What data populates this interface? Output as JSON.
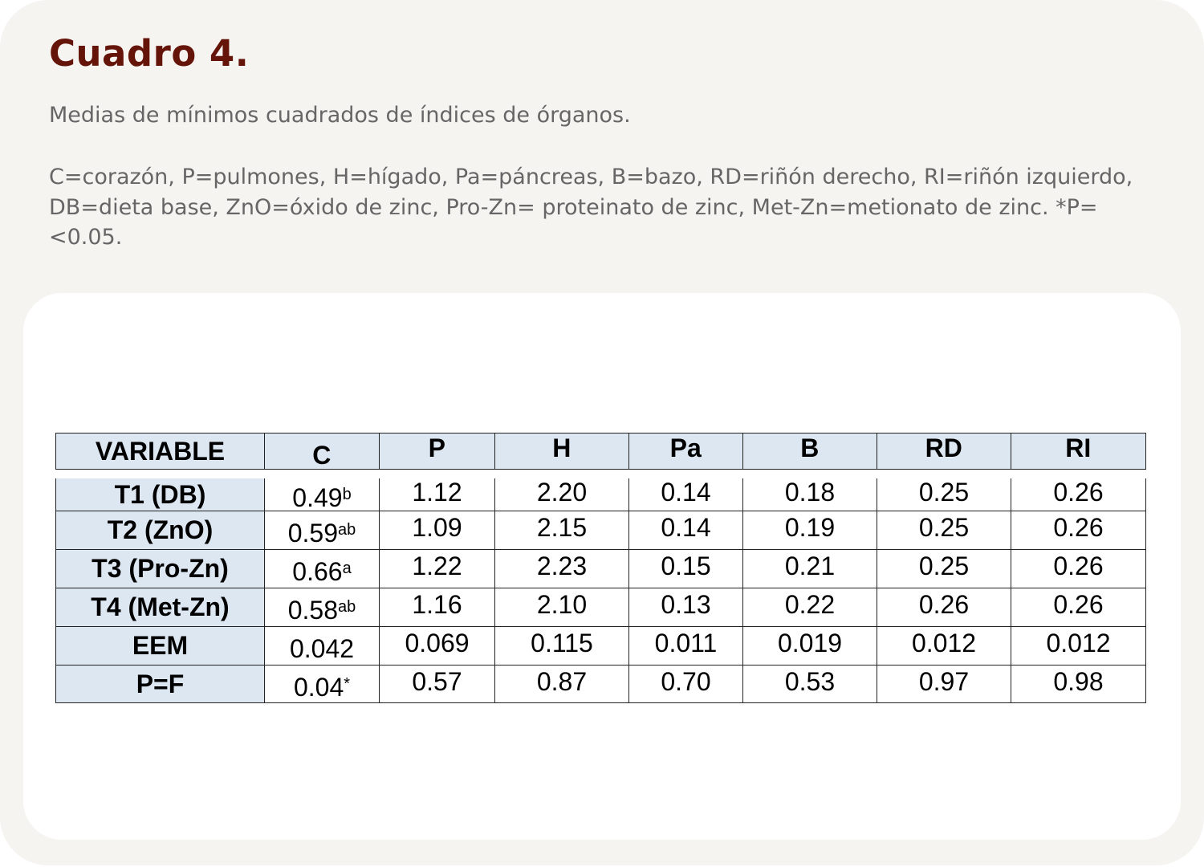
{
  "title": "Cuadro 4.",
  "subtitle": "Medias de mínimos cuadrados de índices de órganos.",
  "note": "C=corazón, P=pulmones, H=hígado, Pa=páncreas, B=bazo, RD=riñón derecho, RI=riñón izquierdo, DB=dieta base, ZnO=óxido de zinc, Pro-Zn= proteinato de zinc, Met-Zn=metionato de zinc. *P=<0.05.",
  "table": {
    "headers": [
      "VARIABLE",
      "C",
      "P",
      "H",
      "Pa",
      "B",
      "RD",
      "RI"
    ],
    "rows": [
      {
        "label": "T1 (DB)",
        "c": "0.49",
        "c_sup": "b",
        "values": [
          "1.12",
          "2.20",
          "0.14",
          "0.18",
          "0.25",
          "0.26"
        ]
      },
      {
        "label": "T2 (ZnO)",
        "c": "0.59",
        "c_sup": "ab",
        "values": [
          "1.09",
          "2.15",
          "0.14",
          "0.19",
          "0.25",
          "0.26"
        ]
      },
      {
        "label": "T3 (Pro-Zn)",
        "c": "0.66",
        "c_sup": "a",
        "values": [
          "1.22",
          "2.23",
          "0.15",
          "0.21",
          "0.25",
          "0.26"
        ]
      },
      {
        "label": "T4 (Met-Zn)",
        "c": "0.58",
        "c_sup": "ab",
        "values": [
          "1.16",
          "2.10",
          "0.13",
          "0.22",
          "0.26",
          "0.26"
        ]
      },
      {
        "label": "EEM",
        "c": "0.042",
        "c_sup": "",
        "values": [
          "0.069",
          "0.115",
          "0.011",
          "0.019",
          "0.012",
          "0.012"
        ]
      },
      {
        "label": "P=F",
        "c": "0.04",
        "c_sup": "*",
        "values": [
          "0.57",
          "0.87",
          "0.70",
          "0.53",
          "0.97",
          "0.98"
        ]
      }
    ]
  },
  "colors": {
    "title": "#65140a",
    "header_fill": "#dde7f2",
    "background": "#f5f4f1"
  }
}
